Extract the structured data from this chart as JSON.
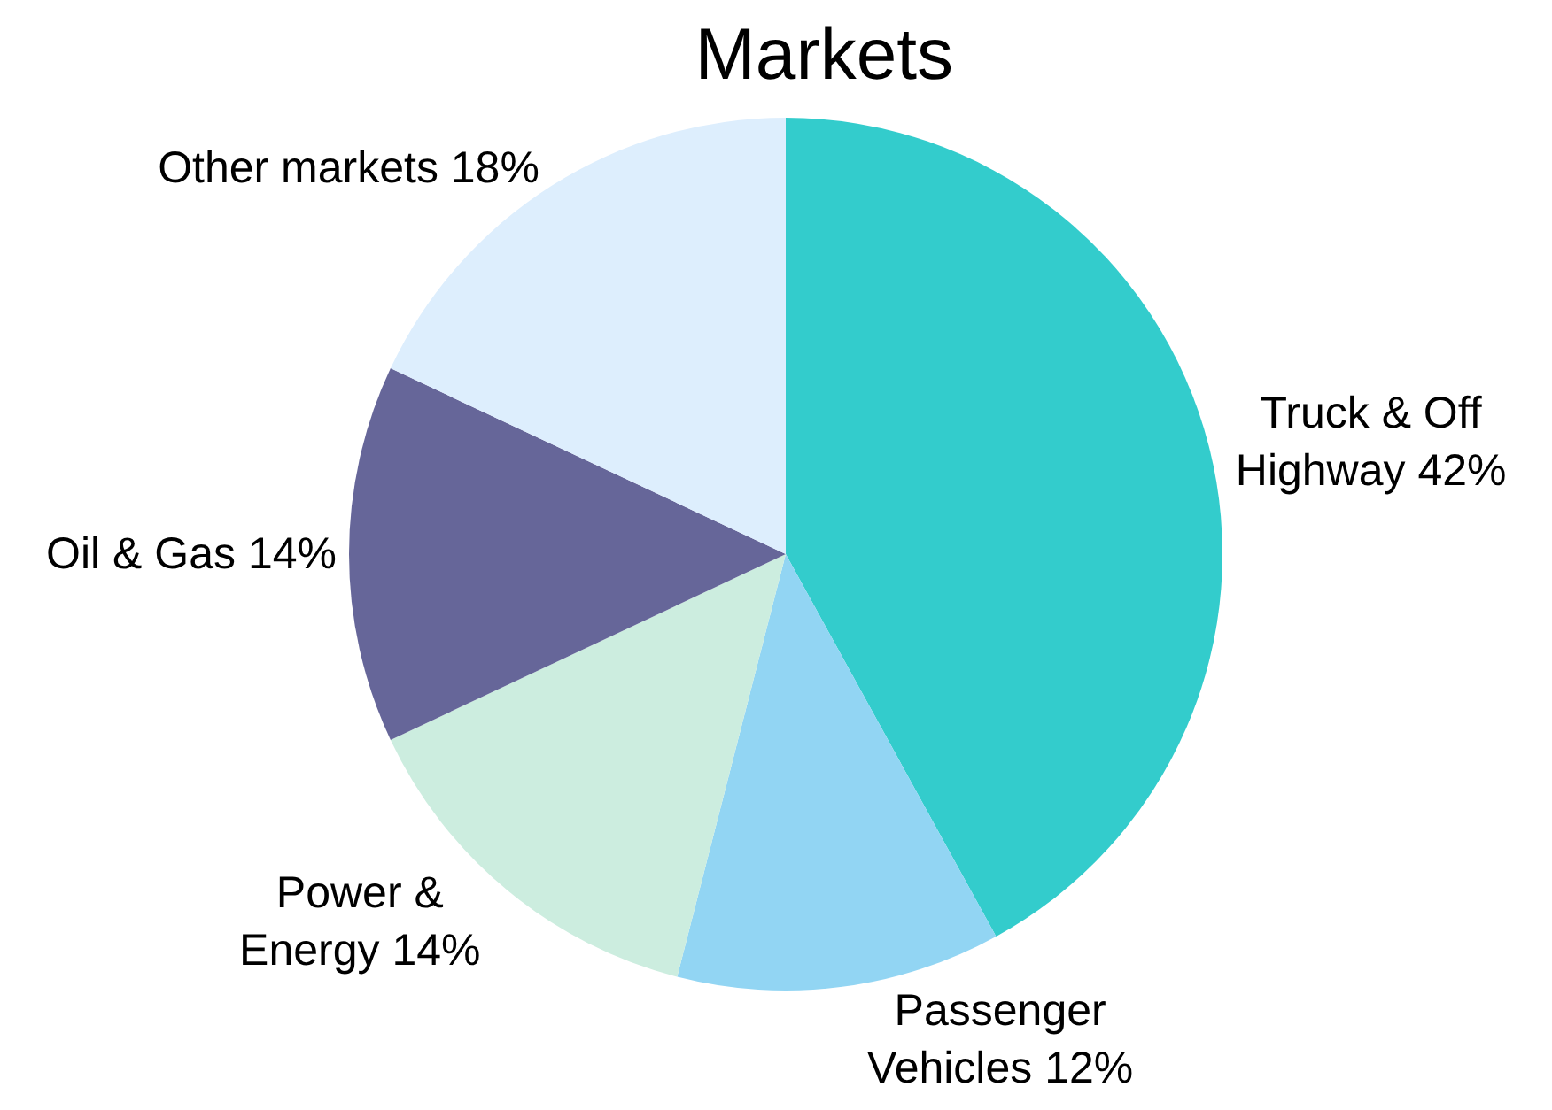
{
  "chart_data": {
    "type": "pie",
    "title": "Markets",
    "categories": [
      "Truck & Off Highway",
      "Passenger Vehicles",
      "Power & Energy",
      "Oil & Gas",
      "Other markets"
    ],
    "values": [
      42,
      12,
      14,
      14,
      18
    ],
    "value_labels": [
      "42%",
      "12%",
      "14%",
      "14%",
      "18%"
    ],
    "colors": [
      "#33cccc",
      "#92d5f3",
      "#cceddf",
      "#666699",
      "#ddeefd"
    ]
  }
}
